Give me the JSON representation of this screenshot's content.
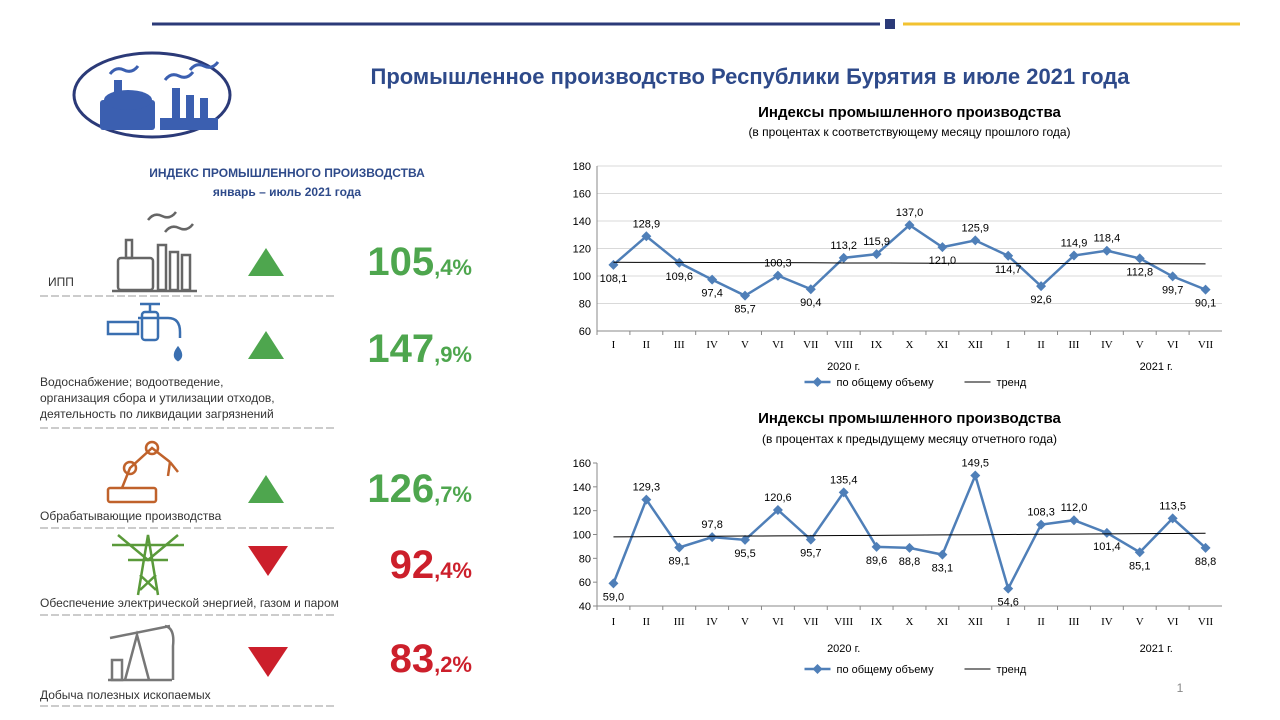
{
  "title": "Промышленное производство Республики Бурятия в июле 2021 года",
  "page_number": "1",
  "panel": {
    "heading": "ИНДЕКС ПРОМЫШЛЕННОГО ПРОИЗВОДСТВА",
    "subheading": "январь – июль  2021 года",
    "items": [
      {
        "label": [
          "ИПП"
        ],
        "value": "105,4%",
        "direction": "up"
      },
      {
        "label": [
          "Водоснабжение; водоотведение,",
          "организация  сбора и утилизации  отходов,",
          "деятельность  по ликвидации  загрязнений"
        ],
        "value": "147,9%",
        "direction": "up"
      },
      {
        "label": [
          "Обрабатывающие  производства"
        ],
        "value": "126,7%",
        "direction": "up"
      },
      {
        "label": [
          "Обеспечение  электрической  энергией, газом и паром"
        ],
        "value": "92,4%",
        "direction": "down"
      },
      {
        "label": [
          "Добыча полезных  ископаемых"
        ],
        "value": "83,2%",
        "direction": "down"
      }
    ]
  },
  "chart_data": [
    {
      "type": "line",
      "title": "Индексы промышленного производства",
      "subtitle": "(в процентах к соответствующему месяцу прошлого  года)",
      "categories": [
        "I",
        "II",
        "III",
        "IV",
        "V",
        "VI",
        "VII",
        "VIII",
        "IX",
        "X",
        "XI",
        "XII",
        "I",
        "II",
        "III",
        "IV",
        "V",
        "VI",
        "VII"
      ],
      "x_groups": [
        "2020 г.",
        "2021 г."
      ],
      "ylim": [
        60,
        180
      ],
      "yticks": [
        60,
        80,
        100,
        120,
        140,
        160,
        180
      ],
      "grid": true,
      "series": [
        {
          "name": "по общему объему",
          "color": "#4f7fb8",
          "marker": "diamond",
          "values": [
            108.1,
            128.9,
            109.6,
            97.4,
            85.7,
            100.3,
            90.4,
            113.2,
            115.9,
            137.0,
            121.0,
            125.9,
            114.7,
            92.6,
            114.9,
            118.4,
            112.8,
            99.7,
            90.1
          ],
          "value_labels": [
            "108,1",
            "128,9",
            "109,6",
            "97,4",
            "85,7",
            "100,3",
            "90,4",
            "113,2",
            "115,9",
            "137,0",
            "121,0",
            "125,9",
            "114,7",
            "92,6",
            "114,9",
            "118,4",
            "112,8",
            "99,7",
            "90,1"
          ]
        },
        {
          "name": "тренд",
          "color": "#000000",
          "values": [
            110.0,
            109.9,
            109.9,
            109.8,
            109.7,
            109.7,
            109.6,
            109.5,
            109.5,
            109.4,
            109.3,
            109.3,
            109.2,
            109.1,
            109.1,
            109.0,
            108.9,
            108.9,
            108.8
          ]
        }
      ]
    },
    {
      "type": "line",
      "title": "Индексы промышленного производства",
      "subtitle": "(в процентах к предыдущему месяцу отчетного года)",
      "categories": [
        "I",
        "II",
        "III",
        "IV",
        "V",
        "VI",
        "VII",
        "VIII",
        "IX",
        "X",
        "XI",
        "XII",
        "I",
        "II",
        "III",
        "IV",
        "V",
        "VI",
        "VII"
      ],
      "x_groups": [
        "2020 г.",
        "2021 г."
      ],
      "ylim": [
        40,
        160
      ],
      "yticks": [
        40,
        60,
        80,
        100,
        120,
        140,
        160
      ],
      "grid": false,
      "series": [
        {
          "name": "по общему объему",
          "color": "#4f7fb8",
          "marker": "diamond",
          "values": [
            59.0,
            129.3,
            89.1,
            97.8,
            95.5,
            120.6,
            95.7,
            135.4,
            89.6,
            88.8,
            83.1,
            149.5,
            54.6,
            108.3,
            112.0,
            101.4,
            85.1,
            113.5,
            88.8
          ],
          "value_labels": [
            "59,0",
            "129,3",
            "89,1",
            "97,8",
            "95,5",
            "120,6",
            "95,7",
            "135,4",
            "89,6",
            "88,8",
            "83,1",
            "149,5",
            "54,6",
            "108,3",
            "112,0",
            "101,4",
            "85,1",
            "113,5",
            "88,8"
          ]
        },
        {
          "name": "тренд",
          "color": "#000000",
          "values": [
            98.0,
            98.2,
            98.3,
            98.5,
            98.7,
            98.8,
            99.0,
            99.2,
            99.3,
            99.5,
            99.7,
            99.8,
            100.0,
            100.2,
            100.3,
            100.5,
            100.7,
            100.8,
            101.0
          ]
        }
      ]
    }
  ]
}
